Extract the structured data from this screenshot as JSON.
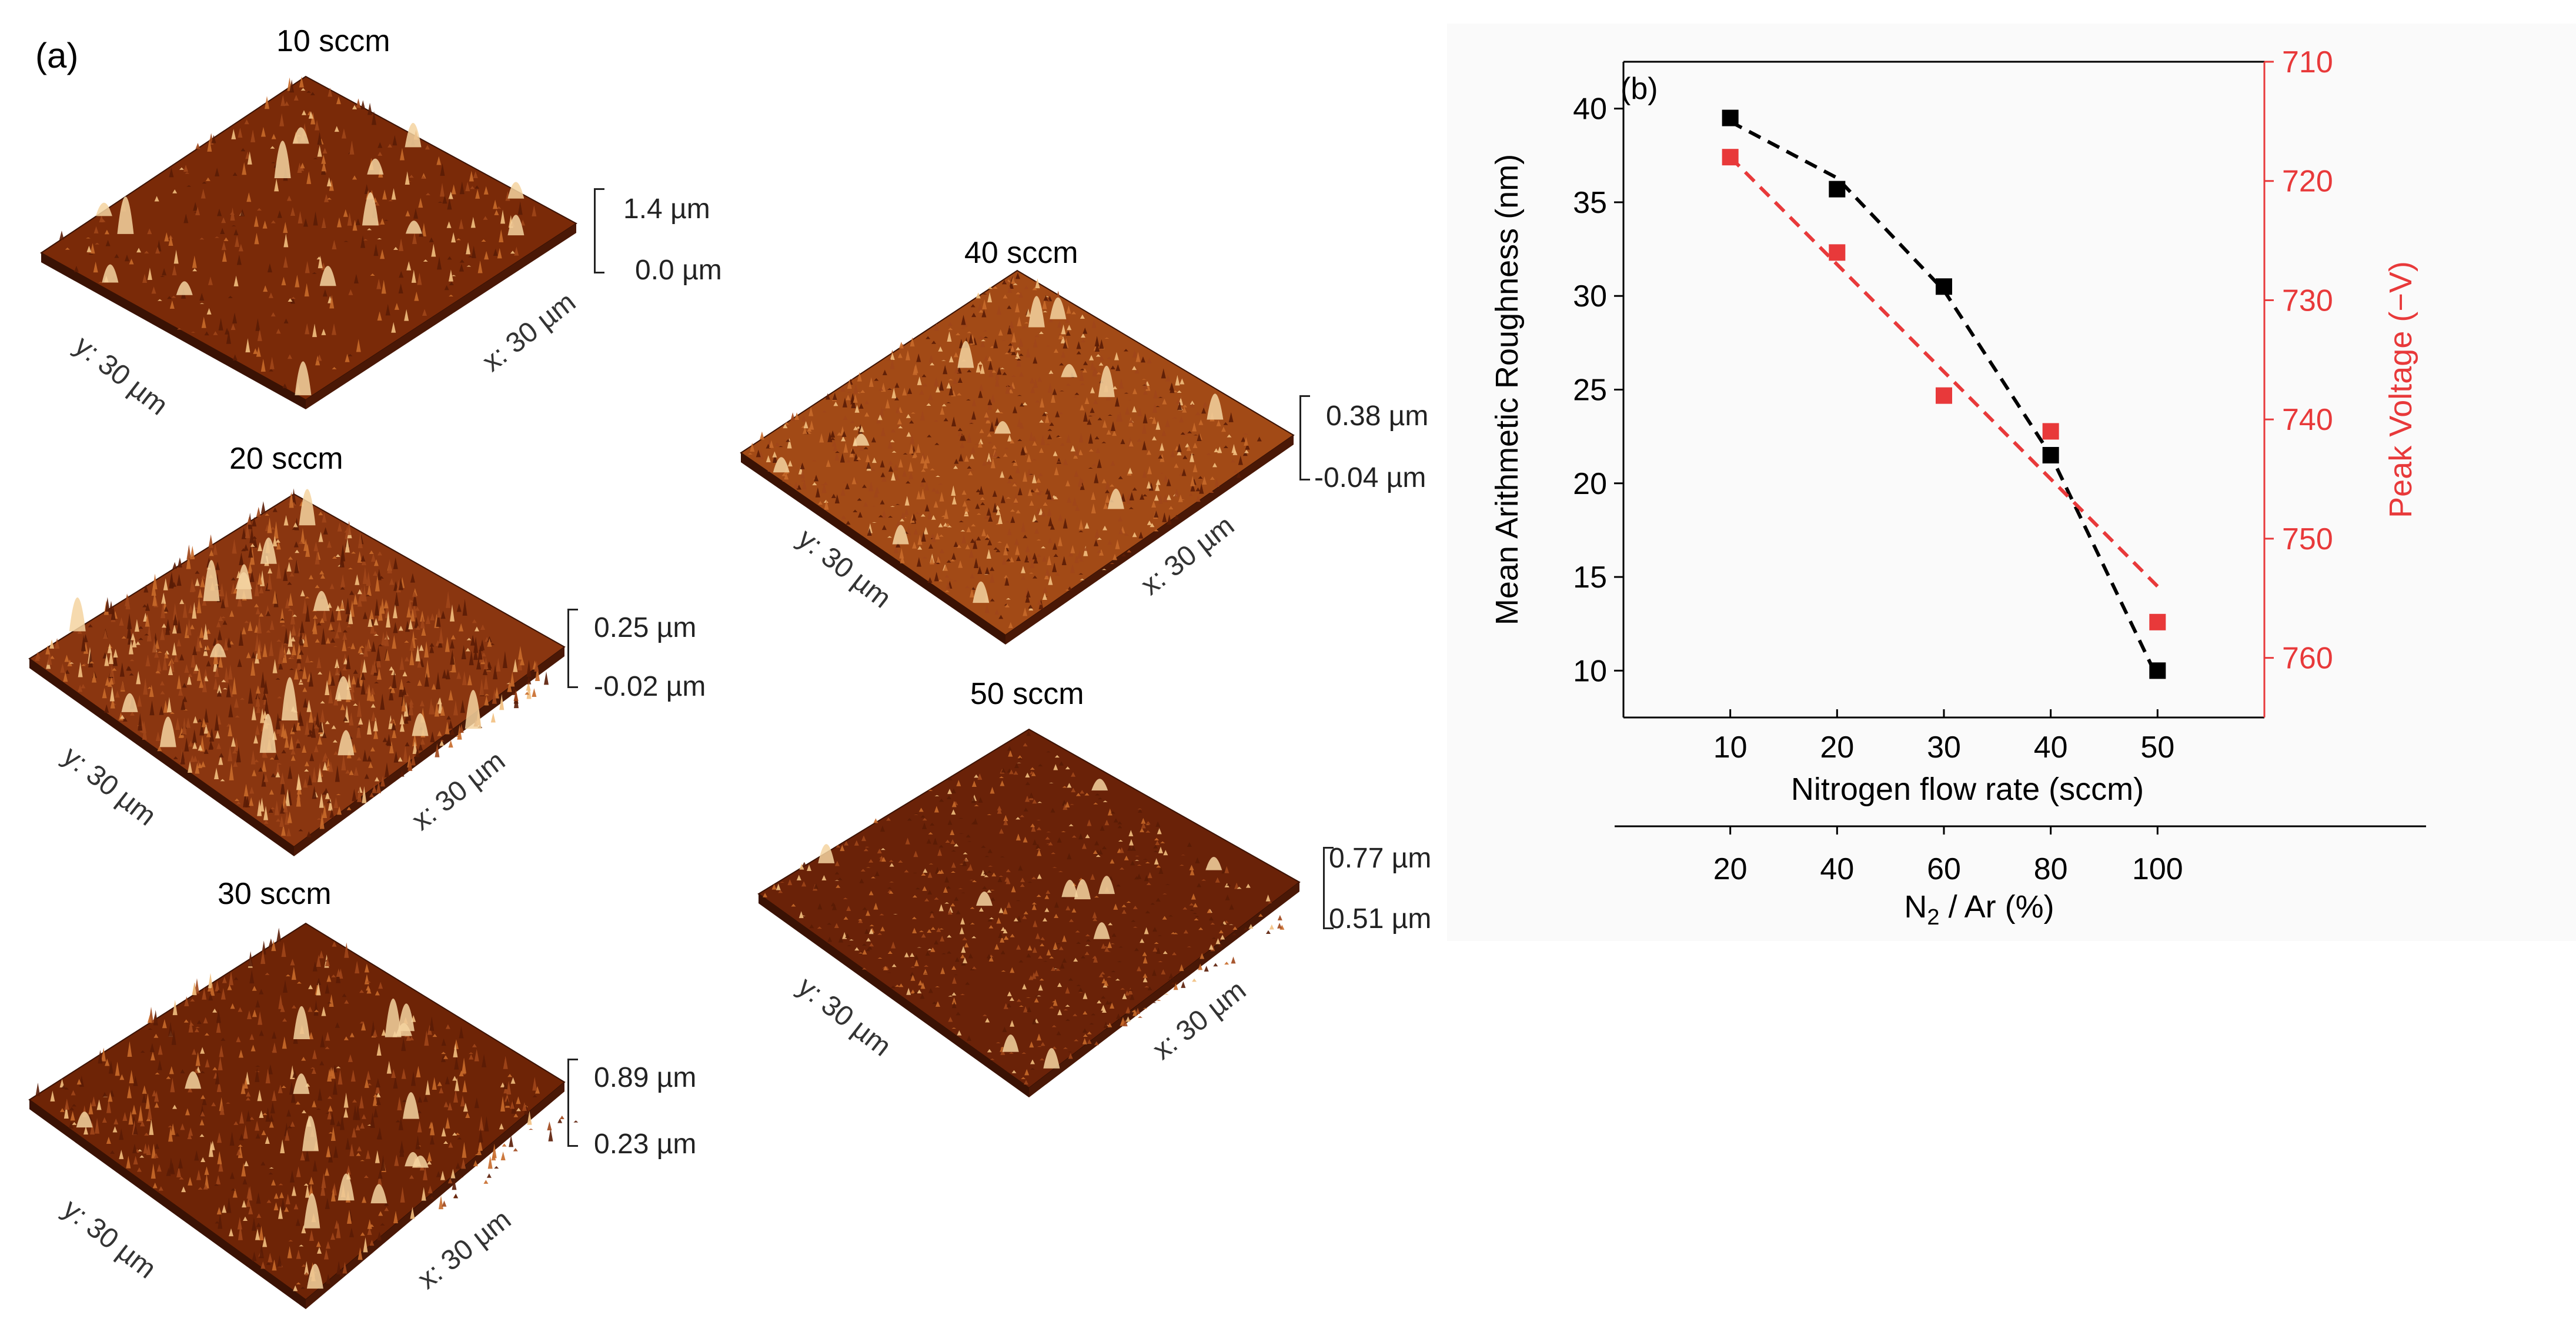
{
  "panel_a": {
    "letter": "(a)",
    "maps": [
      {
        "title": "10 sccm",
        "y_label": "y: 30 µm",
        "x_label": "x: 30 µm",
        "z_max": "1.4 µm",
        "z_min": "0.0 µm",
        "peak_density": 0.25,
        "relief": 0.8,
        "base_color": "#7a2a08"
      },
      {
        "title": "20 sccm",
        "y_label": "y: 30 µm",
        "x_label": "x: 30 µm",
        "z_max": "0.25 µm",
        "z_min": "-0.02 µm",
        "peak_density": 1.0,
        "relief": 1.0,
        "base_color": "#8a3610"
      },
      {
        "title": "30 sccm",
        "y_label": "y: 30 µm",
        "x_label": "x: 30 µm",
        "z_max": "0.89 µm",
        "z_min": "0.23 µm",
        "peak_density": 0.6,
        "relief": 0.9,
        "base_color": "#6e2406"
      },
      {
        "title": "40 sccm",
        "y_label": "y: 30 µm",
        "x_label": "x: 30 µm",
        "z_max": "0.38 µm",
        "z_min": "-0.04 µm",
        "peak_density": 1.0,
        "relief": 0.6,
        "base_color": "#a24a16"
      },
      {
        "title": "50 sccm",
        "y_label": "y: 30 µm",
        "x_label": "x: 30 µm",
        "z_max": "0.77 µm",
        "z_min": "0.51 µm",
        "peak_density": 0.7,
        "relief": 0.4,
        "base_color": "#6a2208"
      }
    ]
  },
  "chart_data": {
    "type": "scatter",
    "panel_letter": "(b)",
    "x": [
      10,
      20,
      30,
      40,
      50
    ],
    "xlabel": "Nitrogen flow rate (sccm)",
    "xlim": [
      0,
      60
    ],
    "xticks": [
      10,
      20,
      30,
      40,
      50
    ],
    "secondary_x": {
      "label_main": "N",
      "label_sub": "2",
      "label_rest": " / Ar (%)",
      "ticks": [
        20,
        40,
        60,
        80,
        100
      ],
      "positions_x": [
        10,
        20,
        30,
        40,
        50
      ]
    },
    "series": [
      {
        "name": "Mean Arithmetic Roughness",
        "axis": "left",
        "color": "#000000",
        "values": [
          39.5,
          35.7,
          30.5,
          21.5,
          10.0
        ],
        "fit": "quadratic",
        "fit_points_x": [
          10,
          20,
          30,
          40,
          50
        ],
        "fit_points_y": [
          39.3,
          36.3,
          30.3,
          21.5,
          9.6
        ]
      },
      {
        "name": "Peak Voltage",
        "axis": "right",
        "color": "#e8393a",
        "values": [
          718,
          726,
          738,
          741,
          757
        ],
        "fit": "linear",
        "fit_points_x": [
          10,
          50
        ],
        "fit_points_y": [
          718,
          754
        ]
      }
    ],
    "y_left": {
      "label": "Mean Arithmetic Roughness (nm)",
      "lim": [
        7.5,
        42.5
      ],
      "ticks": [
        10,
        15,
        20,
        25,
        30,
        35,
        40
      ],
      "color": "#000000"
    },
    "y_right": {
      "label": "Peak Voltage (−V)",
      "lim": [
        710,
        765
      ],
      "inverted": true,
      "ticks": [
        710,
        720,
        730,
        740,
        750,
        760
      ],
      "color": "#e8393a"
    },
    "grid": false
  }
}
